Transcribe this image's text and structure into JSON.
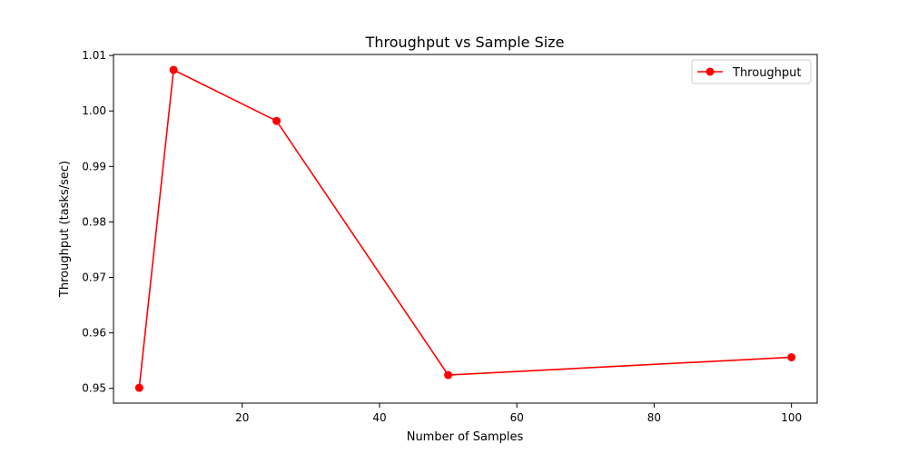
{
  "chart_data": {
    "type": "line",
    "title": "Throughput vs Sample Size",
    "xlabel": "Number of Samples",
    "ylabel": "Throughput (tasks/sec)",
    "xlim": [
      1.25,
      103.75
    ],
    "ylim": [
      0.94733,
      1.01018
    ],
    "xticks": [
      20,
      40,
      60,
      80,
      100
    ],
    "yticks": [
      0.95,
      0.96,
      0.97,
      0.98,
      0.99,
      1.0,
      1.01
    ],
    "ytick_labels": [
      "0.95",
      "0.96",
      "0.97",
      "0.98",
      "0.99",
      "1.00",
      "1.01"
    ],
    "grid": false,
    "legend_position": "top-right",
    "series": [
      {
        "name": "Throughput",
        "color": "#ff0000",
        "marker": "circle",
        "x": [
          5,
          10,
          25,
          50,
          100
        ],
        "y": [
          0.9501,
          1.0074,
          0.9982,
          0.9524,
          0.9556
        ]
      }
    ]
  }
}
